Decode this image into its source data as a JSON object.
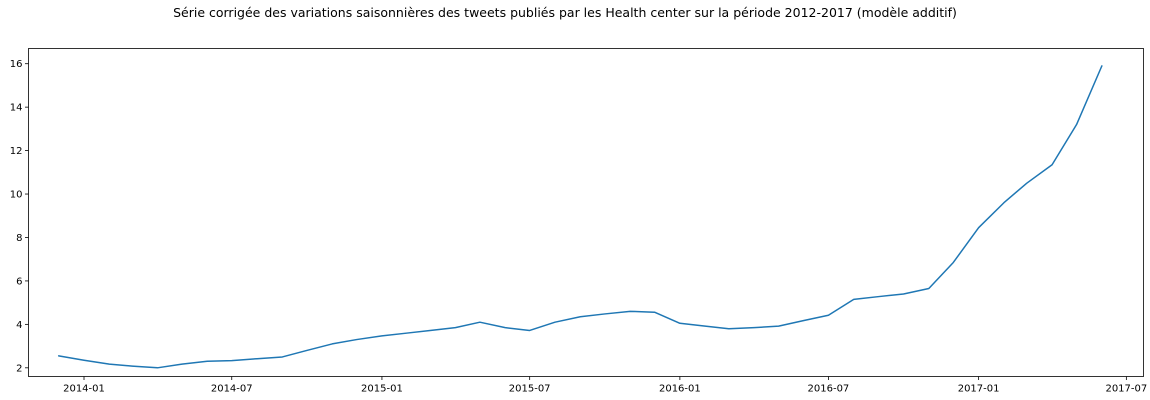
{
  "chart_data": {
    "type": "line",
    "title": "Série corrigée des variations saisonnières des tweets publiés par les Health center sur la période 2012-2017 (modèle additif)",
    "xlabel": "",
    "ylabel": "",
    "x_type": "date",
    "xlim": [
      "2013-10-25",
      "2017-07-22"
    ],
    "ylim": [
      1.6,
      16.7
    ],
    "x_ticks": [
      {
        "value": "2014-01-01",
        "label": "2014-01"
      },
      {
        "value": "2014-07-01",
        "label": "2014-07"
      },
      {
        "value": "2015-01-01",
        "label": "2015-01"
      },
      {
        "value": "2015-07-01",
        "label": "2015-07"
      },
      {
        "value": "2016-01-01",
        "label": "2016-01"
      },
      {
        "value": "2016-07-01",
        "label": "2016-07"
      },
      {
        "value": "2017-01-01",
        "label": "2017-01"
      },
      {
        "value": "2017-07-01",
        "label": "2017-07"
      }
    ],
    "y_ticks": [
      {
        "value": 2,
        "label": "2"
      },
      {
        "value": 4,
        "label": "4"
      },
      {
        "value": 6,
        "label": "6"
      },
      {
        "value": 8,
        "label": "8"
      },
      {
        "value": 10,
        "label": "10"
      },
      {
        "value": 12,
        "label": "12"
      },
      {
        "value": 14,
        "label": "14"
      },
      {
        "value": 16,
        "label": "16"
      }
    ],
    "grid": false,
    "series": [
      {
        "color": "#1f77b4",
        "x": [
          "2013-12-01",
          "2014-01-01",
          "2014-02-01",
          "2014-03-01",
          "2014-04-01",
          "2014-05-01",
          "2014-06-01",
          "2014-07-01",
          "2014-08-01",
          "2014-09-01",
          "2014-10-01",
          "2014-11-01",
          "2014-12-01",
          "2015-01-01",
          "2015-02-01",
          "2015-03-01",
          "2015-04-01",
          "2015-05-01",
          "2015-06-01",
          "2015-07-01",
          "2015-08-01",
          "2015-09-01",
          "2015-10-01",
          "2015-11-01",
          "2015-12-01",
          "2016-01-01",
          "2016-02-01",
          "2016-03-01",
          "2016-04-01",
          "2016-05-01",
          "2016-06-01",
          "2016-07-01",
          "2016-08-01",
          "2016-09-01",
          "2016-10-01",
          "2016-11-01",
          "2016-12-01",
          "2017-01-01",
          "2017-02-01",
          "2017-03-01",
          "2017-04-01",
          "2017-05-01",
          "2017-06-01"
        ],
        "y": [
          2.55,
          2.35,
          2.17,
          2.08,
          2.0,
          2.17,
          2.3,
          2.33,
          2.42,
          2.5,
          2.8,
          3.1,
          3.3,
          3.47,
          3.6,
          3.72,
          3.85,
          4.1,
          3.85,
          3.72,
          4.1,
          4.35,
          4.48,
          4.6,
          4.56,
          4.05,
          3.92,
          3.8,
          3.85,
          3.92,
          4.18,
          4.42,
          5.15,
          5.28,
          5.4,
          5.65,
          6.85,
          8.45,
          9.6,
          10.5,
          11.35,
          13.2,
          15.9
        ]
      }
    ]
  }
}
